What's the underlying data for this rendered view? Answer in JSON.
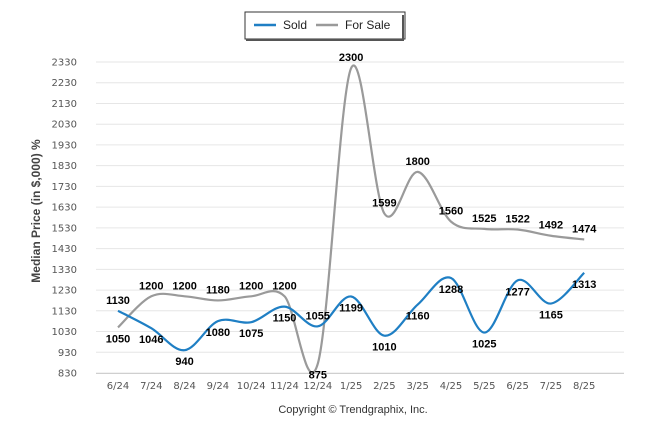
{
  "chart_data": {
    "type": "line",
    "ylabel": "Median Price (in $,000) %",
    "xlabel": "",
    "categories": [
      "6/24",
      "7/24",
      "8/24",
      "9/24",
      "10/24",
      "11/24",
      "12/24",
      "1/25",
      "2/25",
      "3/25",
      "4/25",
      "5/25",
      "6/25",
      "7/25",
      "8/25"
    ],
    "yticks": [
      830,
      930,
      1030,
      1130,
      1230,
      1330,
      1430,
      1530,
      1630,
      1730,
      1830,
      1930,
      2030,
      2130,
      2230,
      2330
    ],
    "ylim": [
      830,
      2330
    ],
    "grid": true,
    "legend_position": "top-center",
    "series": [
      {
        "name": "Sold",
        "color": "#1f7fc4",
        "values": [
          1130,
          1046,
          940,
          1080,
          1075,
          1150,
          1055,
          1199,
          1010,
          1160,
          1288,
          1025,
          1277,
          1165,
          1313
        ]
      },
      {
        "name": "For Sale",
        "color": "#9a9a9a",
        "values": [
          1050,
          1200,
          1200,
          1180,
          1200,
          1200,
          875,
          2300,
          1599,
          1800,
          1560,
          1525,
          1522,
          1492,
          1474
        ]
      }
    ]
  },
  "footer": {
    "copyright": "Copyright © Trendgraphix, Inc."
  }
}
